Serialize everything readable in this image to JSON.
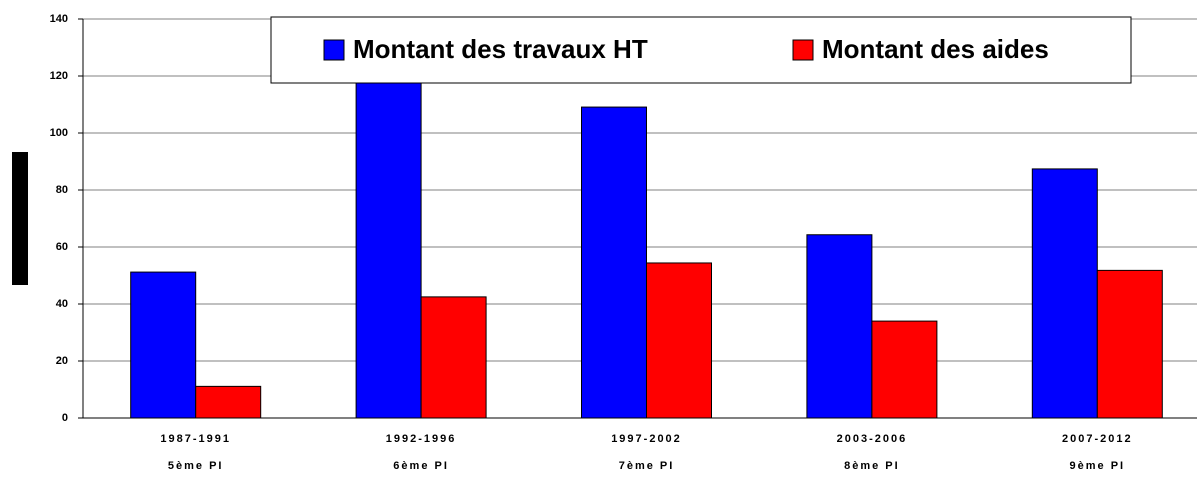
{
  "chart_data": {
    "type": "bar",
    "categories": [
      "1987-1991",
      "1992-1996",
      "1997-2002",
      "2003-2006",
      "2007-2012"
    ],
    "category_sublabels": [
      "5ème PI",
      "6ème PI",
      "7ème PI",
      "8ème PI",
      "9ème PI"
    ],
    "series": [
      {
        "name": "Montant des travaux HT",
        "color": "#0000ff",
        "values": [
          51.2,
          123,
          109.1,
          64.3,
          87.4
        ]
      },
      {
        "name": "Montant des aides",
        "color": "#ff0000",
        "values": [
          11.1,
          42.5,
          54.4,
          34,
          51.8
        ]
      }
    ],
    "ylim": [
      0,
      140
    ],
    "yticks": [
      0,
      20,
      40,
      60,
      80,
      100,
      120,
      140
    ],
    "grid": true,
    "legend": "top"
  }
}
